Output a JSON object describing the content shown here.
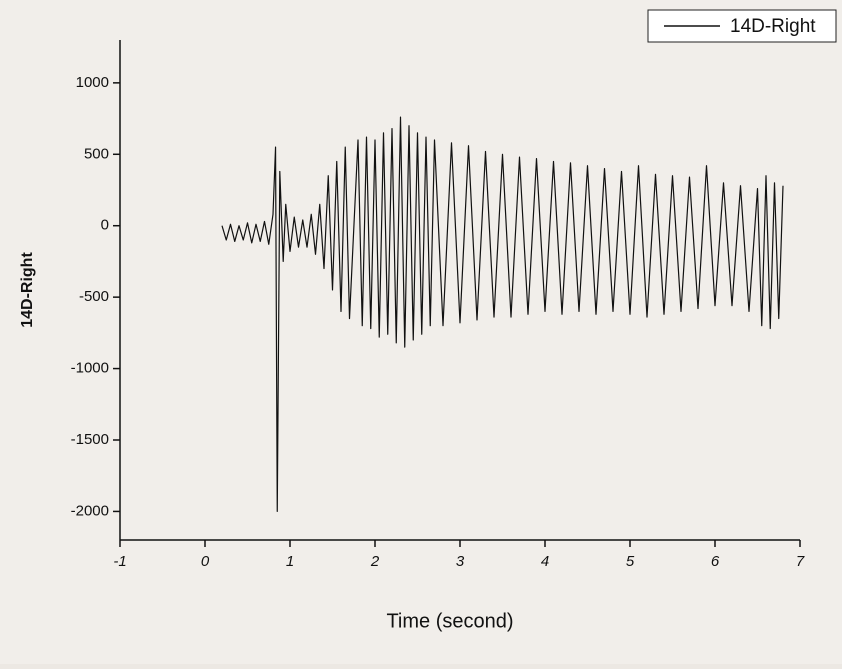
{
  "chart_data": {
    "type": "line",
    "xlabel": "Time (second)",
    "ylabel": "14D-Right",
    "legend": "top-right",
    "xlim": [
      -1,
      7
    ],
    "xticks": [
      -1,
      0,
      1,
      2,
      3,
      4,
      5,
      6,
      7
    ],
    "ylim": [
      -2200,
      1300
    ],
    "yticks": [
      1000,
      500,
      0,
      -500,
      -1000,
      -1500,
      -2000
    ],
    "series": [
      {
        "name": "14D-Right",
        "color": "#111111",
        "x": [
          0.2,
          0.25,
          0.3,
          0.35,
          0.4,
          0.45,
          0.5,
          0.55,
          0.6,
          0.65,
          0.7,
          0.75,
          0.8,
          0.83,
          0.85,
          0.88,
          0.92,
          0.95,
          1.0,
          1.05,
          1.1,
          1.15,
          1.2,
          1.25,
          1.3,
          1.35,
          1.4,
          1.45,
          1.5,
          1.55,
          1.6,
          1.65,
          1.7,
          1.8,
          1.85,
          1.9,
          1.95,
          2.0,
          2.05,
          2.1,
          2.15,
          2.2,
          2.25,
          2.3,
          2.35,
          2.4,
          2.45,
          2.5,
          2.55,
          2.6,
          2.65,
          2.7,
          2.8,
          2.9,
          3.0,
          3.1,
          3.2,
          3.3,
          3.4,
          3.5,
          3.6,
          3.7,
          3.8,
          3.9,
          4.0,
          4.1,
          4.2,
          4.3,
          4.4,
          4.5,
          4.6,
          4.7,
          4.8,
          4.9,
          5.0,
          5.1,
          5.2,
          5.3,
          5.4,
          5.5,
          5.6,
          5.7,
          5.8,
          5.9,
          6.0,
          6.1,
          6.2,
          6.3,
          6.4,
          6.5,
          6.55,
          6.6,
          6.65,
          6.7,
          6.75,
          6.8
        ],
        "values": [
          0,
          -100,
          10,
          -110,
          0,
          -100,
          20,
          -120,
          10,
          -110,
          30,
          -130,
          80,
          550,
          -2000,
          380,
          -250,
          150,
          -180,
          60,
          -150,
          40,
          -150,
          80,
          -200,
          150,
          -300,
          350,
          -450,
          450,
          -600,
          550,
          -650,
          600,
          -700,
          620,
          -720,
          600,
          -780,
          650,
          -760,
          680,
          -820,
          760,
          -850,
          700,
          -800,
          650,
          -760,
          620,
          -700,
          600,
          -700,
          580,
          -680,
          560,
          -660,
          520,
          -640,
          500,
          -640,
          480,
          -620,
          470,
          -600,
          450,
          -620,
          440,
          -600,
          420,
          -620,
          400,
          -600,
          380,
          -620,
          420,
          -640,
          360,
          -620,
          350,
          -600,
          340,
          -580,
          420,
          -560,
          300,
          -560,
          280,
          -600,
          260,
          -700,
          350,
          -720,
          300,
          -650,
          280
        ]
      }
    ]
  }
}
